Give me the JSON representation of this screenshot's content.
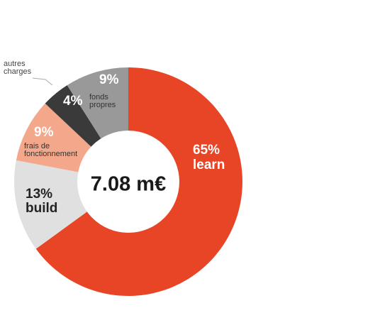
{
  "chart_data": {
    "type": "pie",
    "title": "",
    "center_label": "7.08 m€",
    "slices": [
      {
        "pct_label": "65%",
        "name": "learn",
        "value": 65,
        "color": "#e84527",
        "text_color": "#ffffff"
      },
      {
        "pct_label": "13%",
        "name": "build",
        "value": 13,
        "color": "#e0e0e0",
        "text_color": "#222222"
      },
      {
        "pct_label": "9%",
        "name": "frais de\nfonctionnement",
        "value": 9,
        "color": "#f3a88c",
        "text_color": "#ffffff",
        "name_color": "#333333"
      },
      {
        "pct_label": "4%",
        "name": "autres\ncharges",
        "value": 4,
        "color": "#3a3a3a",
        "text_color": "#ffffff",
        "name_color": "#444444"
      },
      {
        "pct_label": "9%",
        "name": "fonds\npropres",
        "value": 9,
        "color": "#999999",
        "text_color": "#ffffff",
        "name_color": "#333333"
      }
    ]
  }
}
